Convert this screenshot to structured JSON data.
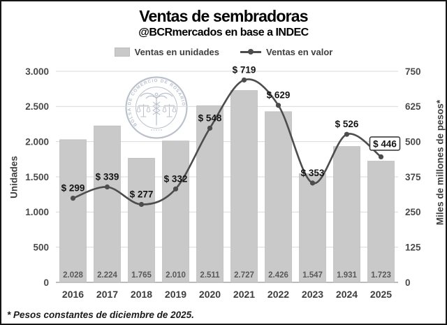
{
  "title": "Ventas de sembradoras",
  "subtitle": "@BCRmercados en base a INDEC",
  "legend": {
    "bars_label": "Ventas en unidades",
    "line_label": "Ventas en valor"
  },
  "footnote": "* Pesos constantes de diciembre de 2025.",
  "watermark_text": "BOLSA DE COMERCIO DE ROSARIO",
  "colors": {
    "bar_fill": "#c9c9c9",
    "bar_border": "#bcbcbc",
    "bar_label": "#595959",
    "line": "#4d4d4d",
    "marker": "#4d4d4d",
    "grid": "#d9d9d9",
    "axis_line": "#a6a6a6",
    "tick_text": "#4a4a4a",
    "category_text": "#3d3d3d",
    "point_label": "#141414",
    "callout_border": "#3f3f3f",
    "watermark": "#aeb7c3"
  },
  "chart_data": {
    "type": "bar",
    "title": "Ventas de sembradoras",
    "subtitle": "@BCRmercados en base a INDEC",
    "categories": [
      "2016",
      "2017",
      "2018",
      "2019",
      "2020",
      "2021",
      "2022",
      "2023",
      "2024",
      "2025"
    ],
    "series": [
      {
        "name": "Ventas en unidades",
        "type": "bar",
        "axis": "left",
        "values": [
          2028,
          2224,
          1765,
          2010,
          2511,
          2727,
          2426,
          1547,
          1931,
          1723
        ],
        "labels": [
          "2.028",
          "2.224",
          "1.765",
          "2.010",
          "2.511",
          "2.727",
          "2.426",
          "1.547",
          "1.931",
          "1.723"
        ]
      },
      {
        "name": "Ventas en valor",
        "type": "line",
        "axis": "right",
        "values": [
          299,
          339,
          277,
          332,
          548,
          719,
          629,
          353,
          526,
          446
        ],
        "labels": [
          "$ 299",
          "$ 339",
          "$ 277",
          "$ 332",
          "$ 548",
          "$ 719",
          "$ 629",
          "$ 353",
          "$ 526",
          "$ 446"
        ],
        "last_label_boxed": true
      }
    ],
    "left_axis": {
      "title": "Unidades",
      "min": 0,
      "max": 3000,
      "step": 500,
      "tick_labels": [
        "3.000",
        "2.500",
        "2.000",
        "1.500",
        "1.000",
        "500",
        "0"
      ]
    },
    "right_axis": {
      "title": "Miles de millones de pesos*",
      "min": 0,
      "max": 750,
      "step": 125,
      "tick_labels": [
        "750",
        "625",
        "500",
        "375",
        "250",
        "125",
        "0"
      ]
    },
    "grid": "horizontal",
    "legend_position": "top"
  }
}
